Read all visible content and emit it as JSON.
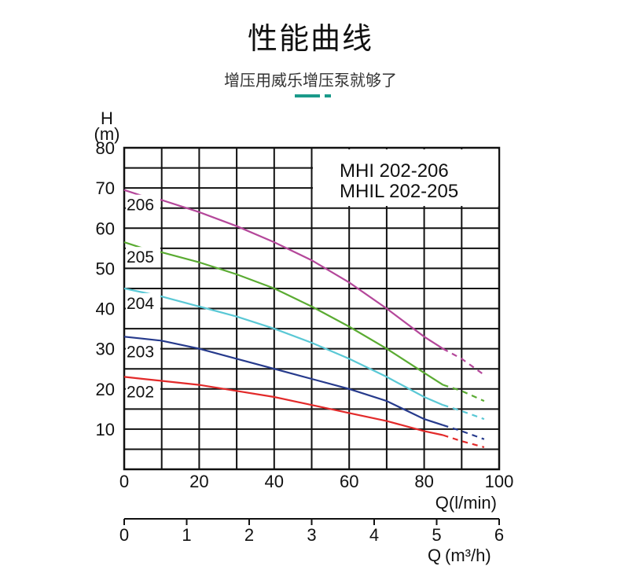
{
  "header": {
    "title": "性能曲线",
    "subtitle": "增压用威乐增压泵就够了",
    "accent_color": "#1a9a8a"
  },
  "chart_data": {
    "type": "line",
    "title": "",
    "legend_box": [
      "MHI    202-206",
      "MHIL 202-205"
    ],
    "ylabel_top": "H",
    "ylabel_unit": "(m)",
    "xlabel": "Q(l/min)",
    "xlabel2_prefix": "Q",
    "xlabel2_unit": "(m³/h)",
    "ylim": [
      0,
      80
    ],
    "xlim": [
      0,
      100
    ],
    "x2lim": [
      0,
      6
    ],
    "yticks": [
      10,
      20,
      30,
      40,
      50,
      60,
      70,
      80
    ],
    "xticks": [
      0,
      20,
      40,
      60,
      80,
      100
    ],
    "x2ticks": [
      0,
      1,
      2,
      3,
      4,
      5,
      6
    ],
    "grid": true,
    "series": [
      {
        "name": "206",
        "color": "#b4479a",
        "x": [
          0,
          5,
          10,
          20,
          30,
          40,
          50,
          60,
          70,
          80,
          85
        ],
        "y": [
          69.5,
          68,
          67,
          64,
          60.5,
          56.5,
          52,
          46.5,
          40,
          33,
          30
        ],
        "dashed_x": [
          85,
          90,
          96
        ],
        "dashed_y": [
          30,
          27.5,
          23.5
        ]
      },
      {
        "name": "205",
        "color": "#5aab32",
        "x": [
          0,
          5,
          10,
          20,
          30,
          40,
          50,
          60,
          70,
          80,
          85
        ],
        "y": [
          56.5,
          55,
          54,
          51.5,
          48.5,
          45,
          40.5,
          35.5,
          30,
          24,
          21
        ],
        "dashed_x": [
          85,
          90,
          96
        ],
        "dashed_y": [
          21,
          19.5,
          17
        ]
      },
      {
        "name": "204",
        "color": "#5ac8d5",
        "x": [
          0,
          5,
          10,
          20,
          30,
          40,
          50,
          60,
          70,
          80,
          85
        ],
        "y": [
          45,
          44,
          43,
          40.5,
          38,
          35,
          31.5,
          27.5,
          23,
          18,
          16
        ],
        "dashed_x": [
          85,
          90,
          96
        ],
        "dashed_y": [
          16,
          14.5,
          12.5
        ]
      },
      {
        "name": "203",
        "color": "#263a8c",
        "x": [
          0,
          5,
          10,
          20,
          30,
          40,
          50,
          60,
          70,
          80,
          85
        ],
        "y": [
          33,
          32.5,
          32,
          30,
          27.5,
          25,
          22.5,
          20,
          17,
          12.5,
          11
        ],
        "dashed_x": [
          85,
          90,
          96
        ],
        "dashed_y": [
          11,
          9.5,
          7.5
        ]
      },
      {
        "name": "202",
        "color": "#e22a2a",
        "x": [
          0,
          5,
          10,
          20,
          30,
          40,
          50,
          60,
          70,
          80,
          85
        ],
        "y": [
          23,
          22.5,
          22,
          21,
          19.5,
          18,
          16,
          14,
          12,
          9.5,
          8.5
        ],
        "dashed_x": [
          85,
          90,
          96
        ],
        "dashed_y": [
          8.5,
          7,
          5.5
        ]
      }
    ]
  }
}
